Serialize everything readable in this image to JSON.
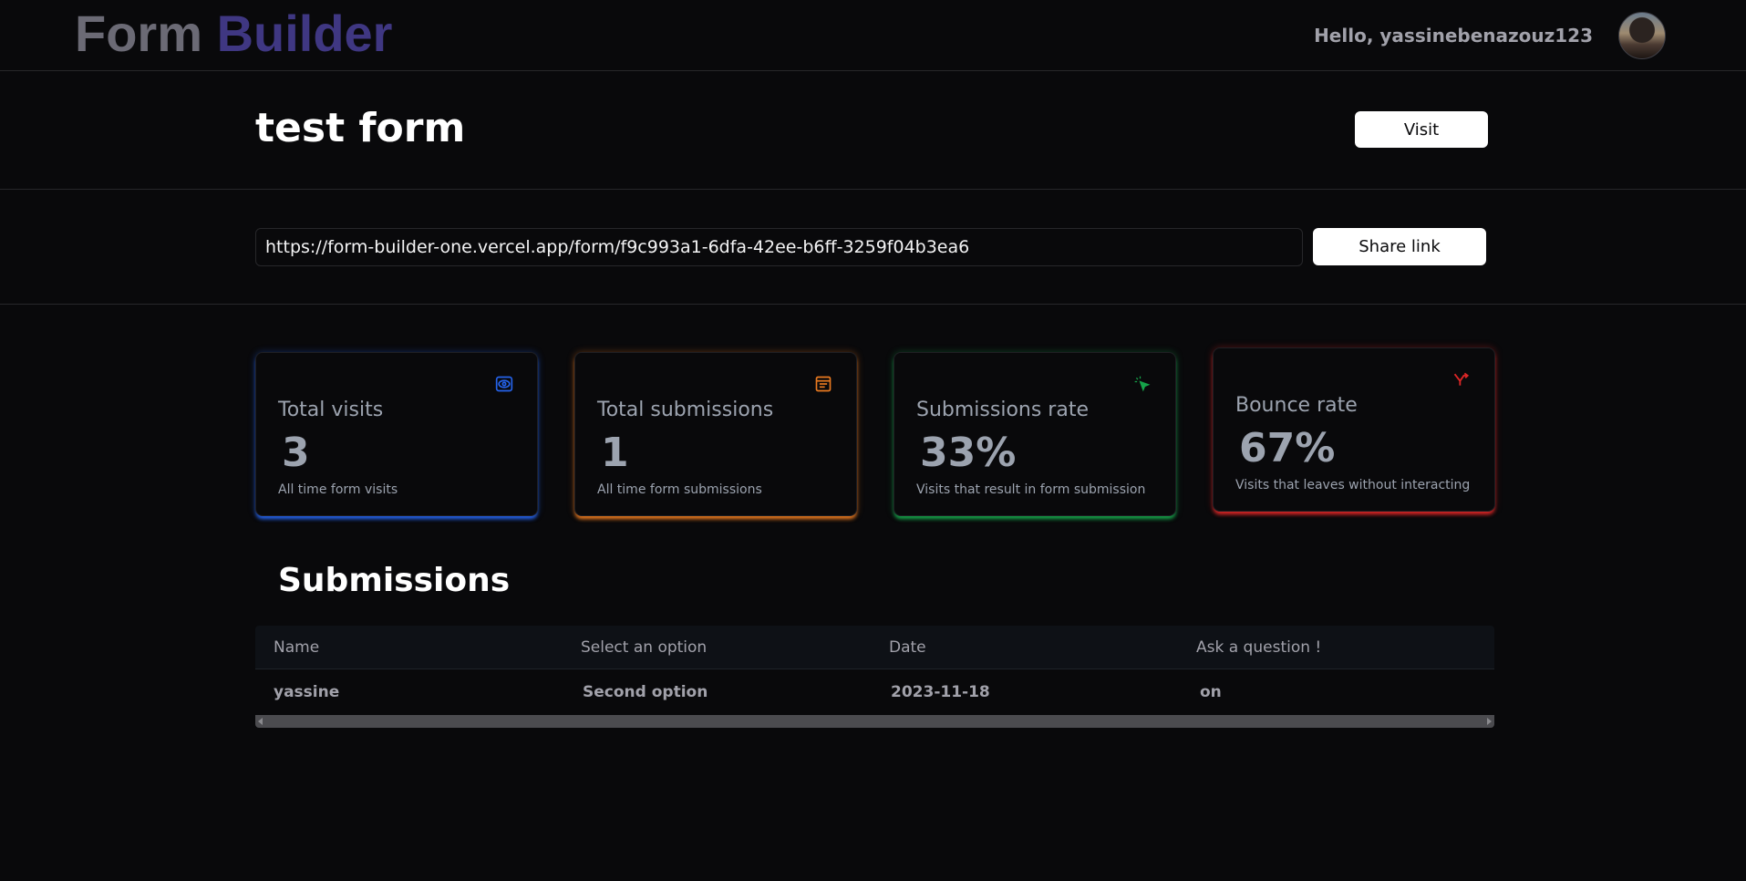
{
  "app": {
    "logo_part1": "Form",
    "logo_part2": "Builder",
    "greeting": "Hello, yassinebenazouz123"
  },
  "form": {
    "title": "test form",
    "visit_label": "Visit",
    "share_url": "https://form-builder-one.vercel.app/form/f9c993a1-6dfa-42ee-b6ff-3259f04b3ea6",
    "share_label": "Share link"
  },
  "stats": [
    {
      "title": "Total visits",
      "value": "3",
      "subtitle": "All time form visits",
      "icon": "eye-icon",
      "color": "#2563eb"
    },
    {
      "title": "Total submissions",
      "value": "1",
      "subtitle": "All time form submissions",
      "icon": "form-icon",
      "color": "#ea7a20"
    },
    {
      "title": "Submissions rate",
      "value": "33%",
      "subtitle": "Visits that result in form submission",
      "icon": "cursor-click-icon",
      "color": "#16a34a"
    },
    {
      "title": "Bounce rate",
      "value": "67%",
      "subtitle": "Visits that leaves without interacting",
      "icon": "split-arrow-icon",
      "color": "#dc2626"
    }
  ],
  "submissions": {
    "heading": "Submissions",
    "columns": [
      "Name",
      "Select an option",
      "Date",
      "Ask a question !"
    ],
    "rows": [
      [
        "yassine",
        "Second option",
        "2023-11-18",
        "on"
      ]
    ]
  }
}
